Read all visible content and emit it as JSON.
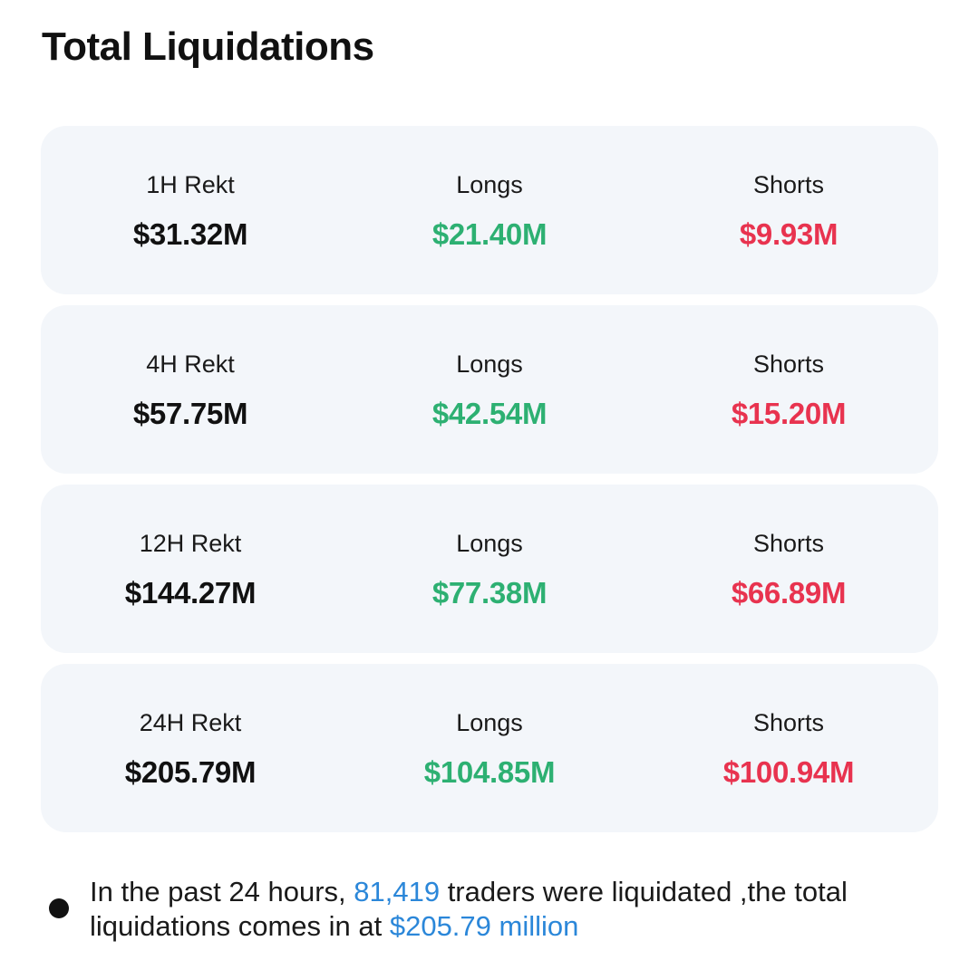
{
  "title": "Total Liquidations",
  "cards": [
    {
      "period_label": "1H Rekt",
      "total": "$31.32M",
      "longs_label": "Longs",
      "longs": "$21.40M",
      "shorts_label": "Shorts",
      "shorts": "$9.93M"
    },
    {
      "period_label": "4H Rekt",
      "total": "$57.75M",
      "longs_label": "Longs",
      "longs": "$42.54M",
      "shorts_label": "Shorts",
      "shorts": "$15.20M"
    },
    {
      "period_label": "12H Rekt",
      "total": "$144.27M",
      "longs_label": "Longs",
      "longs": "$77.38M",
      "shorts_label": "Shorts",
      "shorts": "$66.89M"
    },
    {
      "period_label": "24H Rekt",
      "total": "$205.79M",
      "longs_label": "Longs",
      "longs": "$104.85M",
      "shorts_label": "Shorts",
      "shorts": "$100.94M"
    }
  ],
  "summary": {
    "text_1": "In the past 24 hours, ",
    "traders": "81,419",
    "text_2": " traders were liquidated ,the total liquidations comes in at ",
    "amount": "$205.79 million"
  },
  "colors": {
    "longs": "#2db072",
    "shorts": "#e8334f",
    "highlight": "#2b87d9",
    "card_background": "#f3f6fa"
  }
}
